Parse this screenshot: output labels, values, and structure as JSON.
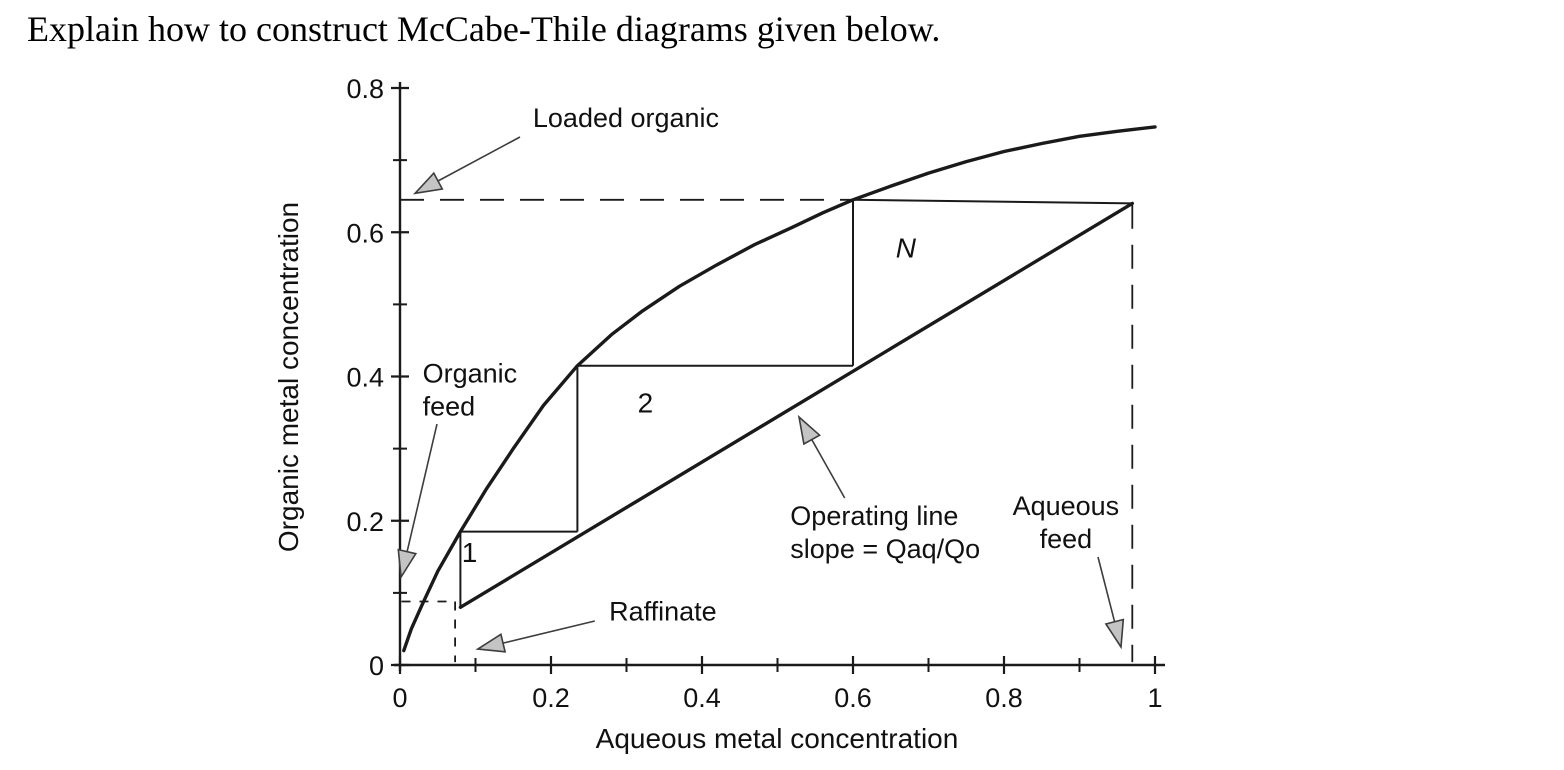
{
  "colors": {
    "ink": "#1a1a1a",
    "annotation_line": "#3d3d3d",
    "arrow_fill": "#c4c4c4",
    "background": "#ffffff"
  },
  "page": {
    "question": "Explain how to construct McCabe-Thile diagrams given below."
  },
  "chart_data": {
    "type": "line",
    "title": "",
    "xlabel": "Aqueous metal concentration",
    "ylabel": "Organic metal concentration",
    "xlim": [
      0,
      1
    ],
    "ylim": [
      0,
      0.8
    ],
    "grid": false,
    "legend": "none",
    "x_ticks": {
      "major": [
        0,
        0.2,
        0.4,
        0.6,
        0.8,
        1
      ],
      "major_labels": [
        "0",
        "0.2",
        "0.4",
        "0.6",
        "0.8",
        "1"
      ],
      "minor": [
        0.1,
        0.3,
        0.5,
        0.7,
        0.9
      ]
    },
    "y_ticks": {
      "major": [
        0,
        0.2,
        0.4,
        0.6,
        0.8
      ],
      "major_labels": [
        "0",
        "0.2",
        "0.4",
        "0.6",
        "0.8"
      ],
      "minor": [
        0.1,
        0.3,
        0.5,
        0.7
      ]
    },
    "series": [
      {
        "name": "equilibrium-curve",
        "x": [
          0.005,
          0.015,
          0.03,
          0.05,
          0.08,
          0.115,
          0.15,
          0.19,
          0.235,
          0.28,
          0.32,
          0.37,
          0.42,
          0.47,
          0.52,
          0.56,
          0.6,
          0.65,
          0.7,
          0.75,
          0.8,
          0.85,
          0.9,
          0.95,
          1.0
        ],
        "y": [
          0.02,
          0.05,
          0.085,
          0.13,
          0.185,
          0.245,
          0.3,
          0.36,
          0.415,
          0.458,
          0.49,
          0.525,
          0.555,
          0.583,
          0.607,
          0.627,
          0.645,
          0.664,
          0.682,
          0.698,
          0.712,
          0.723,
          0.733,
          0.74,
          0.746
        ]
      },
      {
        "name": "operating-line",
        "x": [
          0.08,
          0.97
        ],
        "y": [
          0.08,
          0.64
        ]
      }
    ],
    "key_values": {
      "loaded_organic_y": 0.64,
      "organic_feed_y": 0.08,
      "raffinate_x": 0.08,
      "aqueous_feed_x": 0.97,
      "operating_line_slope": "Qaq/Qo",
      "number_of_stages_label": "N"
    },
    "stage_steps": [
      {
        "x1": 0.08,
        "y1": 0.08,
        "x2": 0.08,
        "y2": 0.185
      },
      {
        "x1": 0.08,
        "y1": 0.185,
        "x2": 0.235,
        "y2": 0.185
      },
      {
        "x1": 0.235,
        "y1": 0.185,
        "x2": 0.235,
        "y2": 0.415
      },
      {
        "x1": 0.235,
        "y1": 0.415,
        "x2": 0.6,
        "y2": 0.415
      },
      {
        "x1": 0.6,
        "y1": 0.415,
        "x2": 0.6,
        "y2": 0.645
      },
      {
        "x1": 0.6,
        "y1": 0.645,
        "x2": 0.97,
        "y2": 0.64
      }
    ],
    "dashed_lines": [
      {
        "name": "loaded-organic-guide",
        "x1": 0.0,
        "y1": 0.645,
        "x2": 0.6,
        "y2": 0.645,
        "style": "long"
      },
      {
        "name": "aqueous-feed-guide",
        "x1": 0.97,
        "y1": 0.638,
        "x2": 0.97,
        "y2": 0.004,
        "style": "long"
      },
      {
        "name": "organic-feed-guide",
        "x1": 0.002,
        "y1": 0.088,
        "x2": 0.073,
        "y2": 0.088,
        "style": "short"
      },
      {
        "name": "raffinate-guide",
        "x1": 0.073,
        "y1": 0.088,
        "x2": 0.073,
        "y2": 0.004,
        "style": "short"
      }
    ],
    "stage_labels": [
      {
        "text": "1",
        "x": 0.092,
        "y": 0.143,
        "italic": false
      },
      {
        "text": "2",
        "x": 0.325,
        "y": 0.35,
        "italic": false
      },
      {
        "text": "N",
        "x": 0.67,
        "y": 0.565,
        "italic": true
      }
    ],
    "annotations": [
      {
        "name": "loaded-organic",
        "lines": [
          "Loaded organic"
        ],
        "anchor": "start",
        "tx": 0.176,
        "ty": 0.746,
        "arrow": {
          "tail": [
            0.159,
            0.732
          ],
          "tip": [
            0.02,
            0.654
          ]
        }
      },
      {
        "name": "organic-feed",
        "lines": [
          "Organic",
          "feed"
        ],
        "anchor": "start",
        "tx": 0.03,
        "ty": 0.392,
        "arrow": {
          "tail": [
            0.049,
            0.334
          ],
          "tip": [
            0.0015,
            0.122
          ]
        }
      },
      {
        "name": "raffinate",
        "lines": [
          "Raffinate"
        ],
        "anchor": "start",
        "tx": 0.277,
        "ty": 0.062,
        "arrow": {
          "tail": [
            0.258,
            0.061
          ],
          "tip": [
            0.103,
            0.022
          ]
        }
      },
      {
        "name": "operating-line-label",
        "lines": [
          "Operating line",
          "slope = Qaq/Qo"
        ],
        "anchor": "start",
        "tx": 0.517,
        "ty": 0.194,
        "arrow": {
          "tail": [
            0.589,
            0.2316
          ],
          "tip": [
            0.5285,
            0.3439
          ]
        }
      },
      {
        "name": "aqueous-feed",
        "lines": [
          "Aqueous",
          "feed"
        ],
        "anchor": "middle",
        "tx": 0.882,
        "ty": 0.208,
        "arrow": {
          "tail": [
            0.9245,
            0.1497
          ],
          "tip": [
            0.955,
            0.025
          ]
        }
      }
    ]
  }
}
